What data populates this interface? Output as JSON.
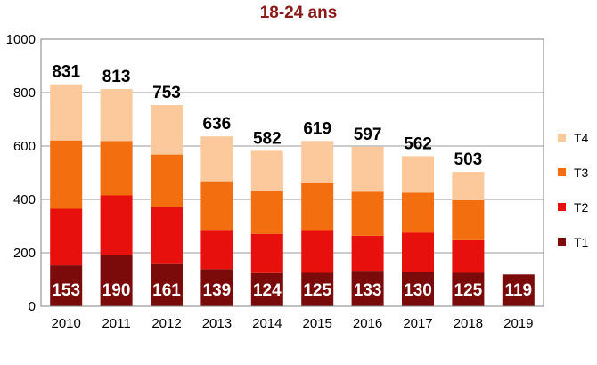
{
  "chart_data": {
    "type": "bar",
    "stacked": true,
    "title": "18-24 ans",
    "xlabel": "",
    "ylabel": "",
    "ylim": [
      0,
      1000
    ],
    "yticks": [
      0,
      200,
      400,
      600,
      800,
      1000
    ],
    "grid": true,
    "legend_position": "right",
    "categories": [
      "2010",
      "2011",
      "2012",
      "2013",
      "2014",
      "2015",
      "2016",
      "2017",
      "2018",
      "2019"
    ],
    "series": [
      {
        "name": "T1",
        "color": "#7B0A0A",
        "values": [
          153,
          190,
          161,
          139,
          124,
          125,
          133,
          130,
          125,
          119
        ]
      },
      {
        "name": "T2",
        "color": "#E8100C",
        "values": [
          212,
          225,
          212,
          147,
          147,
          160,
          131,
          145,
          122,
          null
        ]
      },
      {
        "name": "T3",
        "color": "#F26E0E",
        "values": [
          256,
          204,
          195,
          182,
          163,
          175,
          165,
          150,
          150,
          null
        ]
      },
      {
        "name": "T4",
        "color": "#FBC99B",
        "values": [
          210,
          194,
          185,
          168,
          148,
          159,
          168,
          137,
          106,
          null
        ]
      }
    ],
    "totals": [
      831,
      813,
      753,
      636,
      582,
      619,
      597,
      562,
      503,
      null
    ]
  }
}
